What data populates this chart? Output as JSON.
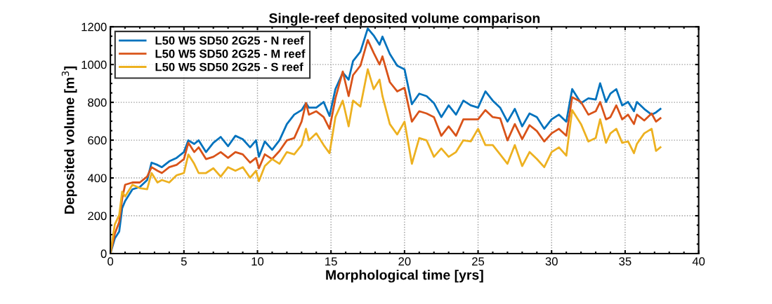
{
  "chart_data": {
    "type": "line",
    "title": "Single-reef deposited volume comparison",
    "xlabel": "Morphological time [yrs]",
    "ylabel": "Deposited volume [m$^{3}$]",
    "x": [
      0,
      0.3,
      0.6,
      0.8,
      1,
      1.5,
      2,
      2.5,
      2.8,
      3.2,
      3.5,
      4,
      4.5,
      5,
      5.3,
      5.7,
      6,
      6.5,
      7,
      7.5,
      8,
      8.5,
      9,
      9.5,
      9.9,
      10.1,
      10.5,
      11,
      11.5,
      12,
      12.5,
      13,
      13.3,
      13.5,
      14,
      14.5,
      14.9,
      15.3,
      15.8,
      16.2,
      16.5,
      17,
      17.5,
      17.9,
      18.3,
      18.5,
      19,
      19.5,
      20,
      20.5,
      21,
      21.5,
      22,
      22.5,
      23,
      23.5,
      24,
      24.5,
      25,
      25.5,
      26,
      26.5,
      27,
      27.5,
      28,
      28.5,
      29,
      29.5,
      30,
      30.5,
      31,
      31.4,
      32,
      32.5,
      33,
      33.3,
      33.7,
      34,
      34.4,
      34.8,
      35.2,
      35.6,
      35.8,
      36.3,
      36.8,
      37.1,
      37.4
    ],
    "series": [
      {
        "name": "L50 W5 SD50 2G25 - N reef",
        "color": "#0072bd",
        "values": [
          0,
          80,
          117,
          240,
          278,
          340,
          352,
          389,
          481,
          469,
          457,
          488,
          506,
          537,
          599,
          580,
          599,
          537,
          586,
          617,
          568,
          623,
          605,
          562,
          599,
          512,
          593,
          549,
          600,
          685,
          735,
          759,
          796,
          772,
          772,
          802,
          728,
          870,
          957,
          920,
          1019,
          1068,
          1191,
          1154,
          1105,
          1148,
          1056,
          994,
          975,
          790,
          846,
          833,
          796,
          722,
          784,
          735,
          809,
          784,
          772,
          858,
          809,
          772,
          698,
          765,
          673,
          741,
          722,
          660,
          710,
          735,
          698,
          870,
          796,
          821,
          815,
          901,
          802,
          846,
          870,
          784,
          802,
          753,
          802,
          765,
          735,
          747,
          765
        ]
      },
      {
        "name": "L50 W5 SD50 2G25 - M reef",
        "color": "#d95319",
        "values": [
          0,
          105,
          167,
          290,
          364,
          376,
          376,
          407,
          457,
          438,
          426,
          457,
          469,
          500,
          586,
          537,
          562,
          500,
          512,
          537,
          506,
          537,
          525,
          481,
          506,
          451,
          525,
          500,
          543,
          599,
          611,
          698,
          796,
          735,
          753,
          722,
          660,
          821,
          963,
          833,
          944,
          994,
          1130,
          1062,
          1000,
          1043,
          907,
          858,
          877,
          698,
          753,
          741,
          722,
          623,
          673,
          623,
          710,
          710,
          710,
          759,
          722,
          716,
          599,
          685,
          605,
          679,
          648,
          593,
          636,
          660,
          623,
          827,
          802,
          735,
          753,
          802,
          710,
          722,
          784,
          710,
          735,
          685,
          735,
          704,
          741,
          698,
          716
        ]
      },
      {
        "name": "L50 W5 SD50 2G25 - S reef",
        "color": "#edb120",
        "values": [
          0,
          154,
          204,
          327,
          302,
          364,
          346,
          340,
          426,
          376,
          389,
          376,
          414,
          426,
          524,
          475,
          426,
          426,
          451,
          407,
          457,
          438,
          457,
          401,
          438,
          383,
          463,
          500,
          475,
          537,
          525,
          574,
          660,
          599,
          636,
          574,
          531,
          722,
          809,
          673,
          809,
          778,
          975,
          870,
          920,
          833,
          685,
          630,
          698,
          475,
          611,
          599,
          512,
          556,
          512,
          537,
          599,
          593,
          660,
          574,
          574,
          525,
          475,
          574,
          463,
          537,
          500,
          457,
          537,
          562,
          518,
          759,
          685,
          593,
          611,
          710,
          586,
          636,
          660,
          586,
          593,
          531,
          580,
          636,
          660,
          543,
          562
        ]
      }
    ],
    "xlim": [
      0,
      40
    ],
    "xticks": [
      0,
      5,
      10,
      15,
      20,
      25,
      30,
      35,
      40
    ],
    "ylim": [
      0,
      1200
    ],
    "yticks": [
      0,
      200,
      400,
      600,
      800,
      1000,
      1200
    ],
    "grid": true,
    "legend": "top left",
    "marker": "none",
    "line_style": "solid"
  }
}
